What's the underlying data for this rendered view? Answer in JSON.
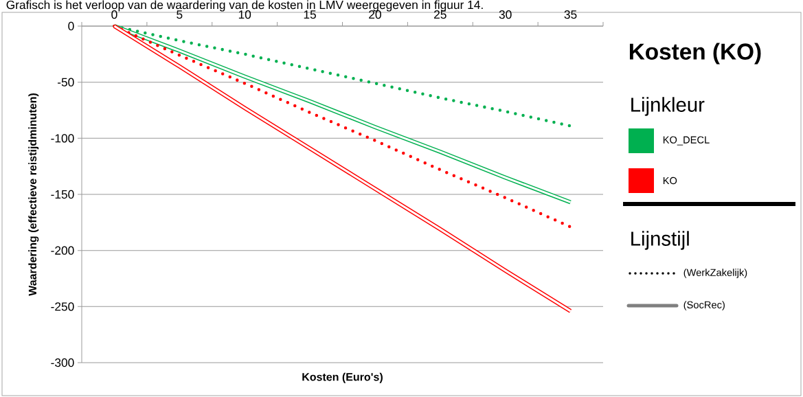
{
  "chart_data": {
    "type": "line",
    "title": "Grafisch is het verloop van de waardering van de kosten in LMV weergegeven in figuur 14.",
    "xlabel": "Kosten (Euro's)",
    "ylabel": "Waardering (effectieve reistijdminuten)",
    "legend_title": "Kosten (KO)",
    "annotations": [
      "Lijnkleur",
      "KO_DECL",
      "KO",
      "Lijnstijl",
      "(WerkZakelijk)",
      "(SocRec)"
    ],
    "categories": [
      "0",
      "5",
      "10",
      "15",
      "20",
      "25",
      "30",
      "35"
    ],
    "series": [
      {
        "color": "#00b050",
        "line_style": "dotted",
        "values": [
          0,
          -13,
          -25,
          -38,
          -51,
          -64,
          -76,
          -89
        ]
      },
      {
        "color": "#00b050",
        "line_style": "solid",
        "values": [
          0,
          -22,
          -45,
          -67,
          -90,
          -112,
          -135,
          -157
        ]
      },
      {
        "color": "#ff0000",
        "line_style": "dotted",
        "values": [
          0,
          -26,
          -51,
          -77,
          -102,
          -128,
          -153,
          -179
        ]
      },
      {
        "color": "#ff0000",
        "line_style": "solid",
        "values": [
          0,
          -36,
          -73,
          -109,
          -145,
          -181,
          -218,
          -254
        ]
      }
    ],
    "ylim": [
      -300,
      0
    ],
    "yticks": [
      -300,
      -250,
      -200,
      -150,
      -100,
      -50,
      0
    ],
    "grid": "y"
  }
}
